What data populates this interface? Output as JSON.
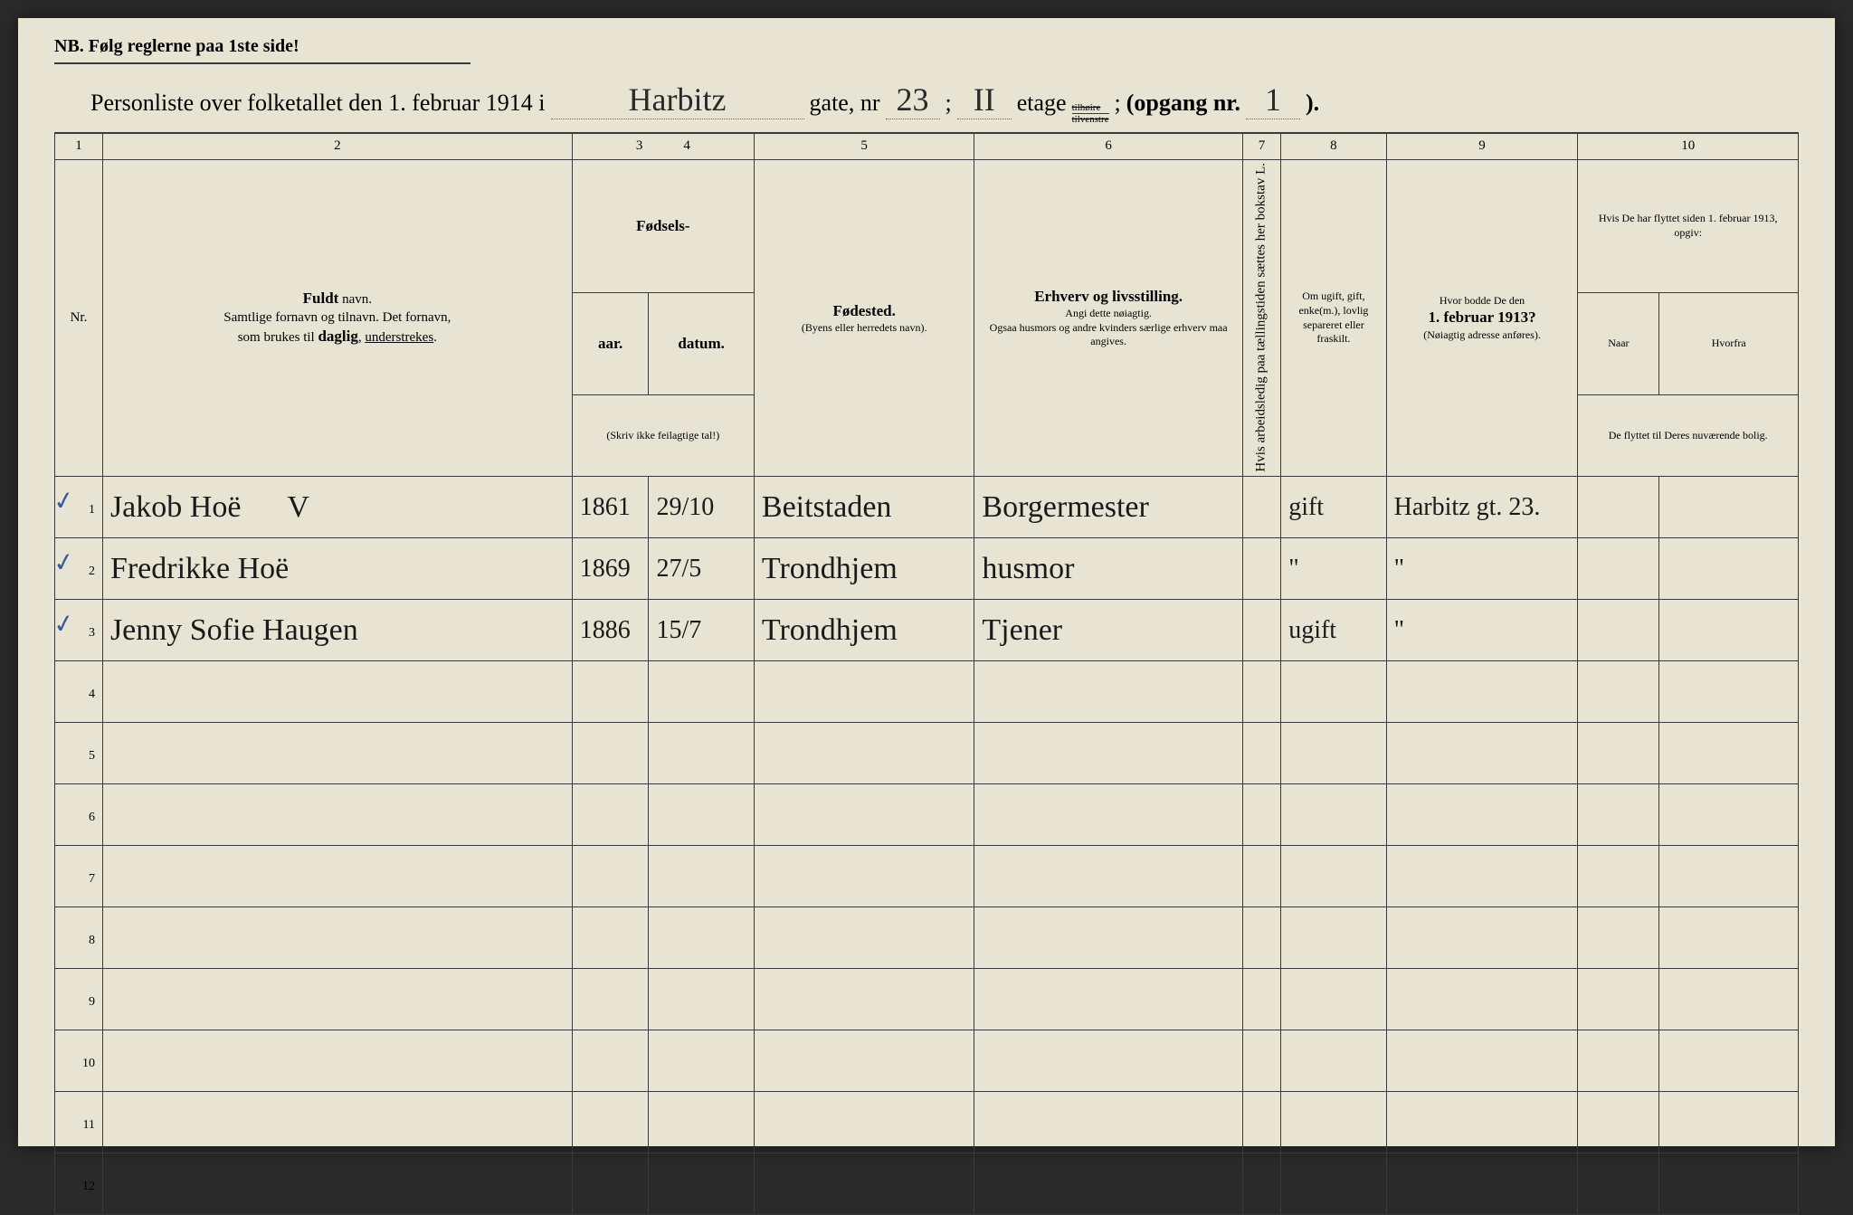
{
  "header": {
    "nb": "NB.",
    "nb_text": "Følg reglerne paa 1ste side!",
    "title_prefix": "Personliste over folketallet den 1. februar 1914 i",
    "street": "Harbitz",
    "gate_label": "gate, nr",
    "gate_nr": "23",
    "sep1": ";",
    "etage_val": "II",
    "etage_label": "etage",
    "etage_top": "tilhøire",
    "etage_bot": "tilvenstre",
    "sep2": ";",
    "opgang_label": "(opgang nr.",
    "opgang_nr": "1",
    "close": ")."
  },
  "colnums": [
    "1",
    "2",
    "3",
    "4",
    "5",
    "6",
    "7",
    "8",
    "9",
    "10"
  ],
  "headers": {
    "nr": "Nr.",
    "name_bold": "Fuldt",
    "name_after": " navn.",
    "name_line2": "Samtlige fornavn og tilnavn. Det fornavn,",
    "name_line3": "som brukes til daglig, understrekes.",
    "fodsels": "Fødsels-",
    "aar": "aar.",
    "datum": "datum.",
    "fods_note": "(Skriv ikke feilagtige tal!)",
    "fodested": "Fødested.",
    "fodested_note": "(Byens eller herredets navn).",
    "erhverv_bold": "Erhverv og livsstilling.",
    "erhverv_l2": "Angi dette nøiagtig.",
    "erhverv_l3": "Ogsaa husmors og andre kvinders særlige erhverv maa angives.",
    "arb": "Hvis arbeidsledig paa tællingstiden sættes her bokstav L.",
    "civil": "Om ugift, gift, enke(m.), lovlig separeret eller fraskilt.",
    "adr_l1": "Hvor bodde De den",
    "adr_l2": "1. februar 1913?",
    "adr_l3": "(Nøiagtig adresse anføres).",
    "flyt_l1": "Hvis De har flyttet siden 1. februar 1913, opgiv:",
    "naar": "Naar",
    "hvorfra": "Hvorfra",
    "flyt_l2": "De flyttet til Deres nuværende bolig."
  },
  "rows": [
    {
      "nr": "1",
      "check": true,
      "name": "Jakob Hoë",
      "mark": "V",
      "aar": "1861",
      "datum": "29/10",
      "sted": "Beitstaden",
      "erhv": "Borgermester",
      "civ": "gift",
      "adr": "Harbitz gt. 23."
    },
    {
      "nr": "2",
      "check": true,
      "name": "Fredrikke Hoë",
      "mark": "",
      "aar": "1869",
      "datum": "27/5",
      "sted": "Trondhjem",
      "erhv": "husmor",
      "civ": "\"",
      "adr": "\""
    },
    {
      "nr": "3",
      "check": true,
      "name": "Jenny Sofie Haugen",
      "mark": "",
      "aar": "1886",
      "datum": "15/7",
      "sted": "Trondhjem",
      "erhv": "Tjener",
      "civ": "ugift",
      "adr": "\""
    },
    {
      "nr": "4"
    },
    {
      "nr": "5"
    },
    {
      "nr": "6"
    },
    {
      "nr": "7"
    },
    {
      "nr": "8"
    },
    {
      "nr": "9"
    },
    {
      "nr": "10"
    },
    {
      "nr": "11"
    },
    {
      "nr": "12"
    }
  ]
}
